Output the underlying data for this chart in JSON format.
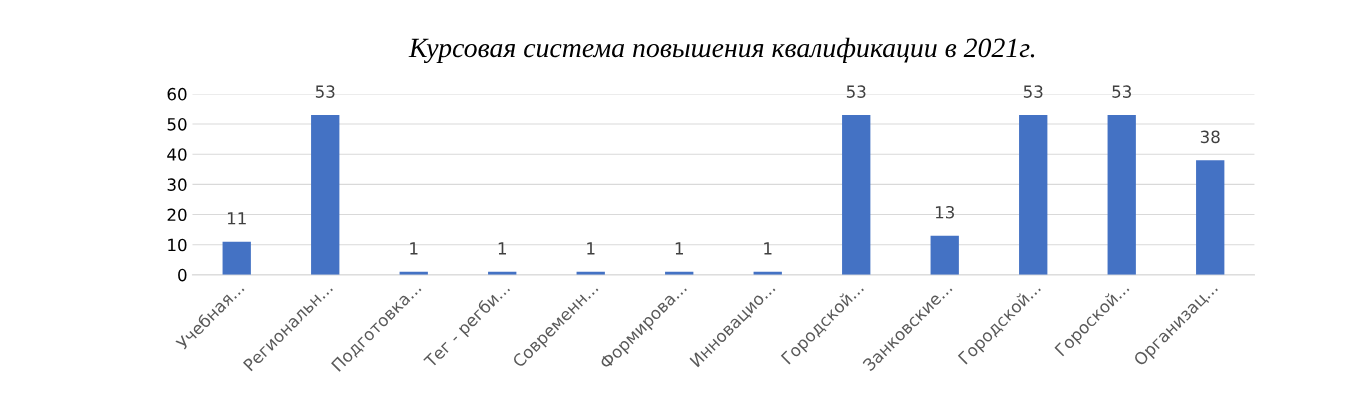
{
  "chart_data": {
    "type": "bar",
    "title": "Курсовая система повышения квалификации в 2021г.",
    "categories": [
      "Учебная...",
      "Региональн...",
      "Подготовка...",
      "Тег - регби...",
      "Современн...",
      "Формирова...",
      "Инновацио...",
      "Городской...",
      "Занковские...",
      "Городской...",
      "Гороской...",
      "Организац..."
    ],
    "values": [
      11,
      53,
      1,
      1,
      1,
      1,
      1,
      53,
      13,
      53,
      53,
      38
    ],
    "color": "#4472c4",
    "ylim": [
      0,
      60
    ],
    "yticks": [
      0,
      10,
      20,
      30,
      40,
      50,
      60
    ],
    "grid": "y",
    "data_labels": true,
    "legend": false
  }
}
